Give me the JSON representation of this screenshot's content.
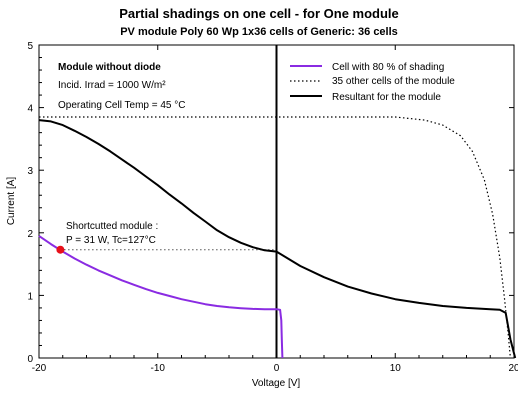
{
  "chart_data": {
    "type": "line",
    "title": "Partial shadings on one cell  -  for One module",
    "subtitle": "PV module   Poly 60 Wp  1x36 cells  of  Generic:  36 cells",
    "xlabel": "Voltage [V]",
    "ylabel": "Current [A]",
    "xlim": [
      -20,
      20
    ],
    "ylim": [
      0,
      5
    ],
    "xticks": [
      "-20",
      "-10",
      "0",
      "10",
      "20"
    ],
    "yticks": [
      "0",
      "1",
      "2",
      "3",
      "4",
      "5"
    ],
    "grid": false,
    "legend_position": "top-right",
    "annotations": {
      "heading": "Module without diode",
      "irradiance": "Incid. Irrad = 1000 W/m²",
      "temperature": "Operating Cell Temp = 45 °C",
      "shortcut_title": "Shortcutted module :",
      "shortcut_values": "P = 31 W, Tc=127°C"
    },
    "shortcut_point": {
      "x": -18.2,
      "y": 1.73
    },
    "series": [
      {
        "name": "Cell with   80 % of shading",
        "color": "#8a2be2",
        "style": "solid",
        "x": [
          -20,
          -19,
          -18,
          -17,
          -16,
          -15,
          -14,
          -13,
          -12,
          -11,
          -10,
          -9,
          -8,
          -7,
          -6,
          -5,
          -4,
          -3,
          -2,
          -1,
          0,
          0.3,
          0.4,
          0.45,
          0.5
        ],
        "y": [
          1.95,
          1.82,
          1.7,
          1.59,
          1.49,
          1.4,
          1.32,
          1.24,
          1.17,
          1.1,
          1.04,
          0.99,
          0.94,
          0.9,
          0.86,
          0.83,
          0.81,
          0.795,
          0.785,
          0.78,
          0.78,
          0.77,
          0.6,
          0.3,
          0
        ]
      },
      {
        "name": "35 other cells of the module",
        "color": "#000000",
        "style": "dotted",
        "x": [
          -20,
          0,
          10,
          12.5,
          14,
          15.5,
          16.5,
          17.5,
          18.2,
          18.8,
          19.2,
          19.5,
          19.7
        ],
        "y": [
          3.85,
          3.85,
          3.85,
          3.8,
          3.72,
          3.55,
          3.3,
          2.85,
          2.3,
          1.6,
          0.95,
          0.4,
          0
        ]
      },
      {
        "name": "Resultant for the module",
        "color": "#000000",
        "style": "solid",
        "x": [
          -20,
          -19,
          -18,
          -17,
          -16,
          -15,
          -14,
          -13,
          -12,
          -11,
          -10,
          -9,
          -8,
          -7,
          -6,
          -5,
          -4,
          -3,
          -2,
          -1,
          0,
          2,
          4,
          6,
          8,
          10,
          12,
          14,
          16,
          18,
          18.8,
          19.3,
          19.7,
          20.1
        ],
        "y": [
          3.8,
          3.78,
          3.72,
          3.63,
          3.53,
          3.42,
          3.3,
          3.17,
          3.04,
          2.9,
          2.76,
          2.61,
          2.47,
          2.32,
          2.18,
          2.04,
          1.93,
          1.84,
          1.77,
          1.72,
          1.7,
          1.47,
          1.29,
          1.14,
          1.03,
          0.94,
          0.88,
          0.83,
          0.8,
          0.78,
          0.77,
          0.72,
          0.3,
          0
        ]
      }
    ]
  }
}
